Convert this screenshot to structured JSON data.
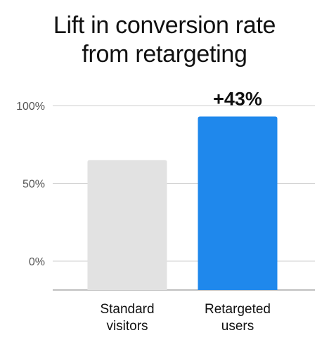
{
  "chart_data": {
    "type": "bar",
    "title_lines": [
      "Lift in conversion rate",
      "from retargeting"
    ],
    "categories": [
      [
        "Standard",
        "visitors"
      ],
      [
        "Retargeted",
        "users"
      ]
    ],
    "values": [
      65,
      93
    ],
    "colors": [
      "#e2e2e2",
      "#1f88ec"
    ],
    "yticks": [
      {
        "value": 100,
        "label": "100%"
      },
      {
        "value": 50,
        "label": "50%"
      },
      {
        "value": 0,
        "label": "0%"
      }
    ],
    "ylim": [
      0,
      100
    ],
    "annotation": {
      "text": "+43%",
      "bar_index": 1
    },
    "grid": true,
    "legend": "none"
  }
}
